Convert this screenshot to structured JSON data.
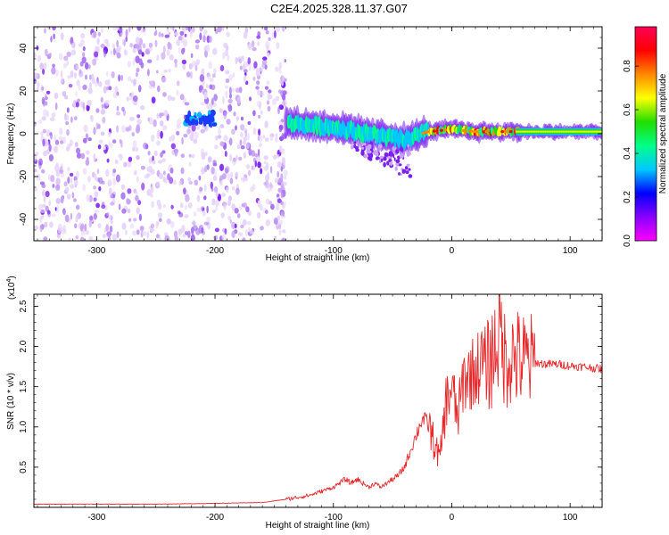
{
  "figure_title": "C2E4.2025.328.11.37.G07",
  "colors": {
    "snr_line": "#e8282a",
    "background": "#ffffff",
    "axis": "#000000"
  },
  "colormap": [
    "#ff00ff",
    "#8800ff",
    "#0000ff",
    "#00c8ff",
    "#00ff88",
    "#22dd00",
    "#ffff00",
    "#ff8800",
    "#ff0000",
    "#ff0055"
  ],
  "chart_data": [
    {
      "type": "heatmap",
      "name": "spectrogram",
      "title": "",
      "xlabel": "Height of straight line (km)",
      "ylabel": "Frequency (Hz)",
      "xlim": [
        -353,
        127
      ],
      "ylim": [
        -50,
        50
      ],
      "x_ticks": [
        -300,
        -200,
        -100,
        0,
        100
      ],
      "x_tick_labels": [
        "-300",
        "-200",
        "-100",
        "0",
        "100"
      ],
      "y_ticks": [
        -40,
        -20,
        0,
        20,
        40
      ],
      "y_tick_labels": [
        "-40",
        "-20",
        "0",
        "20",
        "40"
      ],
      "noise_region_x": [
        -353,
        -140
      ],
      "signal_band": [
        {
          "x": -220,
          "y": 7
        },
        {
          "x": -205,
          "y": 6
        },
        {
          "x": -140,
          "y": 5
        },
        {
          "x": -120,
          "y": 4
        },
        {
          "x": -100,
          "y": 3
        },
        {
          "x": -80,
          "y": 1
        },
        {
          "x": -60,
          "y": -1
        },
        {
          "x": -40,
          "y": -3
        },
        {
          "x": -20,
          "y": 1
        },
        {
          "x": 0,
          "y": 2
        },
        {
          "x": 20,
          "y": 1
        },
        {
          "x": 50,
          "y": 1
        },
        {
          "x": 127,
          "y": 1
        }
      ],
      "colorbar": {
        "label": "Normalized spectral amplitude",
        "range": [
          0,
          0.98
        ],
        "ticks": [
          0.0,
          0.2,
          0.4,
          0.6,
          0.8
        ],
        "tick_labels": [
          "0.0",
          "0.2",
          "0.4",
          "0.6",
          "0.8"
        ]
      }
    },
    {
      "type": "line",
      "name": "snr",
      "title": "",
      "xlabel": "Height of straight line (km)",
      "ylabel": "SNR (10 * v/v)",
      "y_multiplier": "(x10",
      "y_multiplier_exp": "4",
      "y_multiplier_close": ")",
      "xlim": [
        -353,
        127
      ],
      "ylim": [
        0,
        2.65
      ],
      "x_ticks": [
        -300,
        -200,
        -100,
        0,
        100
      ],
      "x_tick_labels": [
        "-300",
        "-200",
        "-100",
        "0",
        "100"
      ],
      "y_ticks": [
        0.5,
        1.0,
        1.5,
        2.0,
        2.5
      ],
      "y_tick_labels": [
        "0.5",
        "1.0",
        "1.5",
        "2.0",
        "2.5"
      ],
      "series": [
        {
          "name": "SNR",
          "x": [
            -353,
            -300,
            -250,
            -200,
            -160,
            -140,
            -120,
            -110,
            -100,
            -95,
            -90,
            -85,
            -80,
            -75,
            -70,
            -65,
            -60,
            -55,
            -50,
            -45,
            -40,
            -35,
            -30,
            -25,
            -20,
            -15,
            -10,
            -5,
            0,
            5,
            10,
            15,
            20,
            25,
            30,
            35,
            40,
            45,
            50,
            55,
            60,
            65,
            70,
            80,
            90,
            100,
            110,
            127
          ],
          "y": [
            0.04,
            0.04,
            0.04,
            0.05,
            0.06,
            0.1,
            0.15,
            0.2,
            0.25,
            0.3,
            0.35,
            0.3,
            0.35,
            0.3,
            0.25,
            0.3,
            0.25,
            0.3,
            0.35,
            0.4,
            0.5,
            0.7,
            0.9,
            1.1,
            1.05,
            0.8,
            0.6,
            1.3,
            1.5,
            1.1,
            1.6,
            1.65,
            1.7,
            1.8,
            1.75,
            1.9,
            2.2,
            1.85,
            1.9,
            1.85,
            1.82,
            1.8,
            1.8,
            1.78,
            1.78,
            1.76,
            1.75,
            1.72
          ]
        }
      ]
    }
  ]
}
